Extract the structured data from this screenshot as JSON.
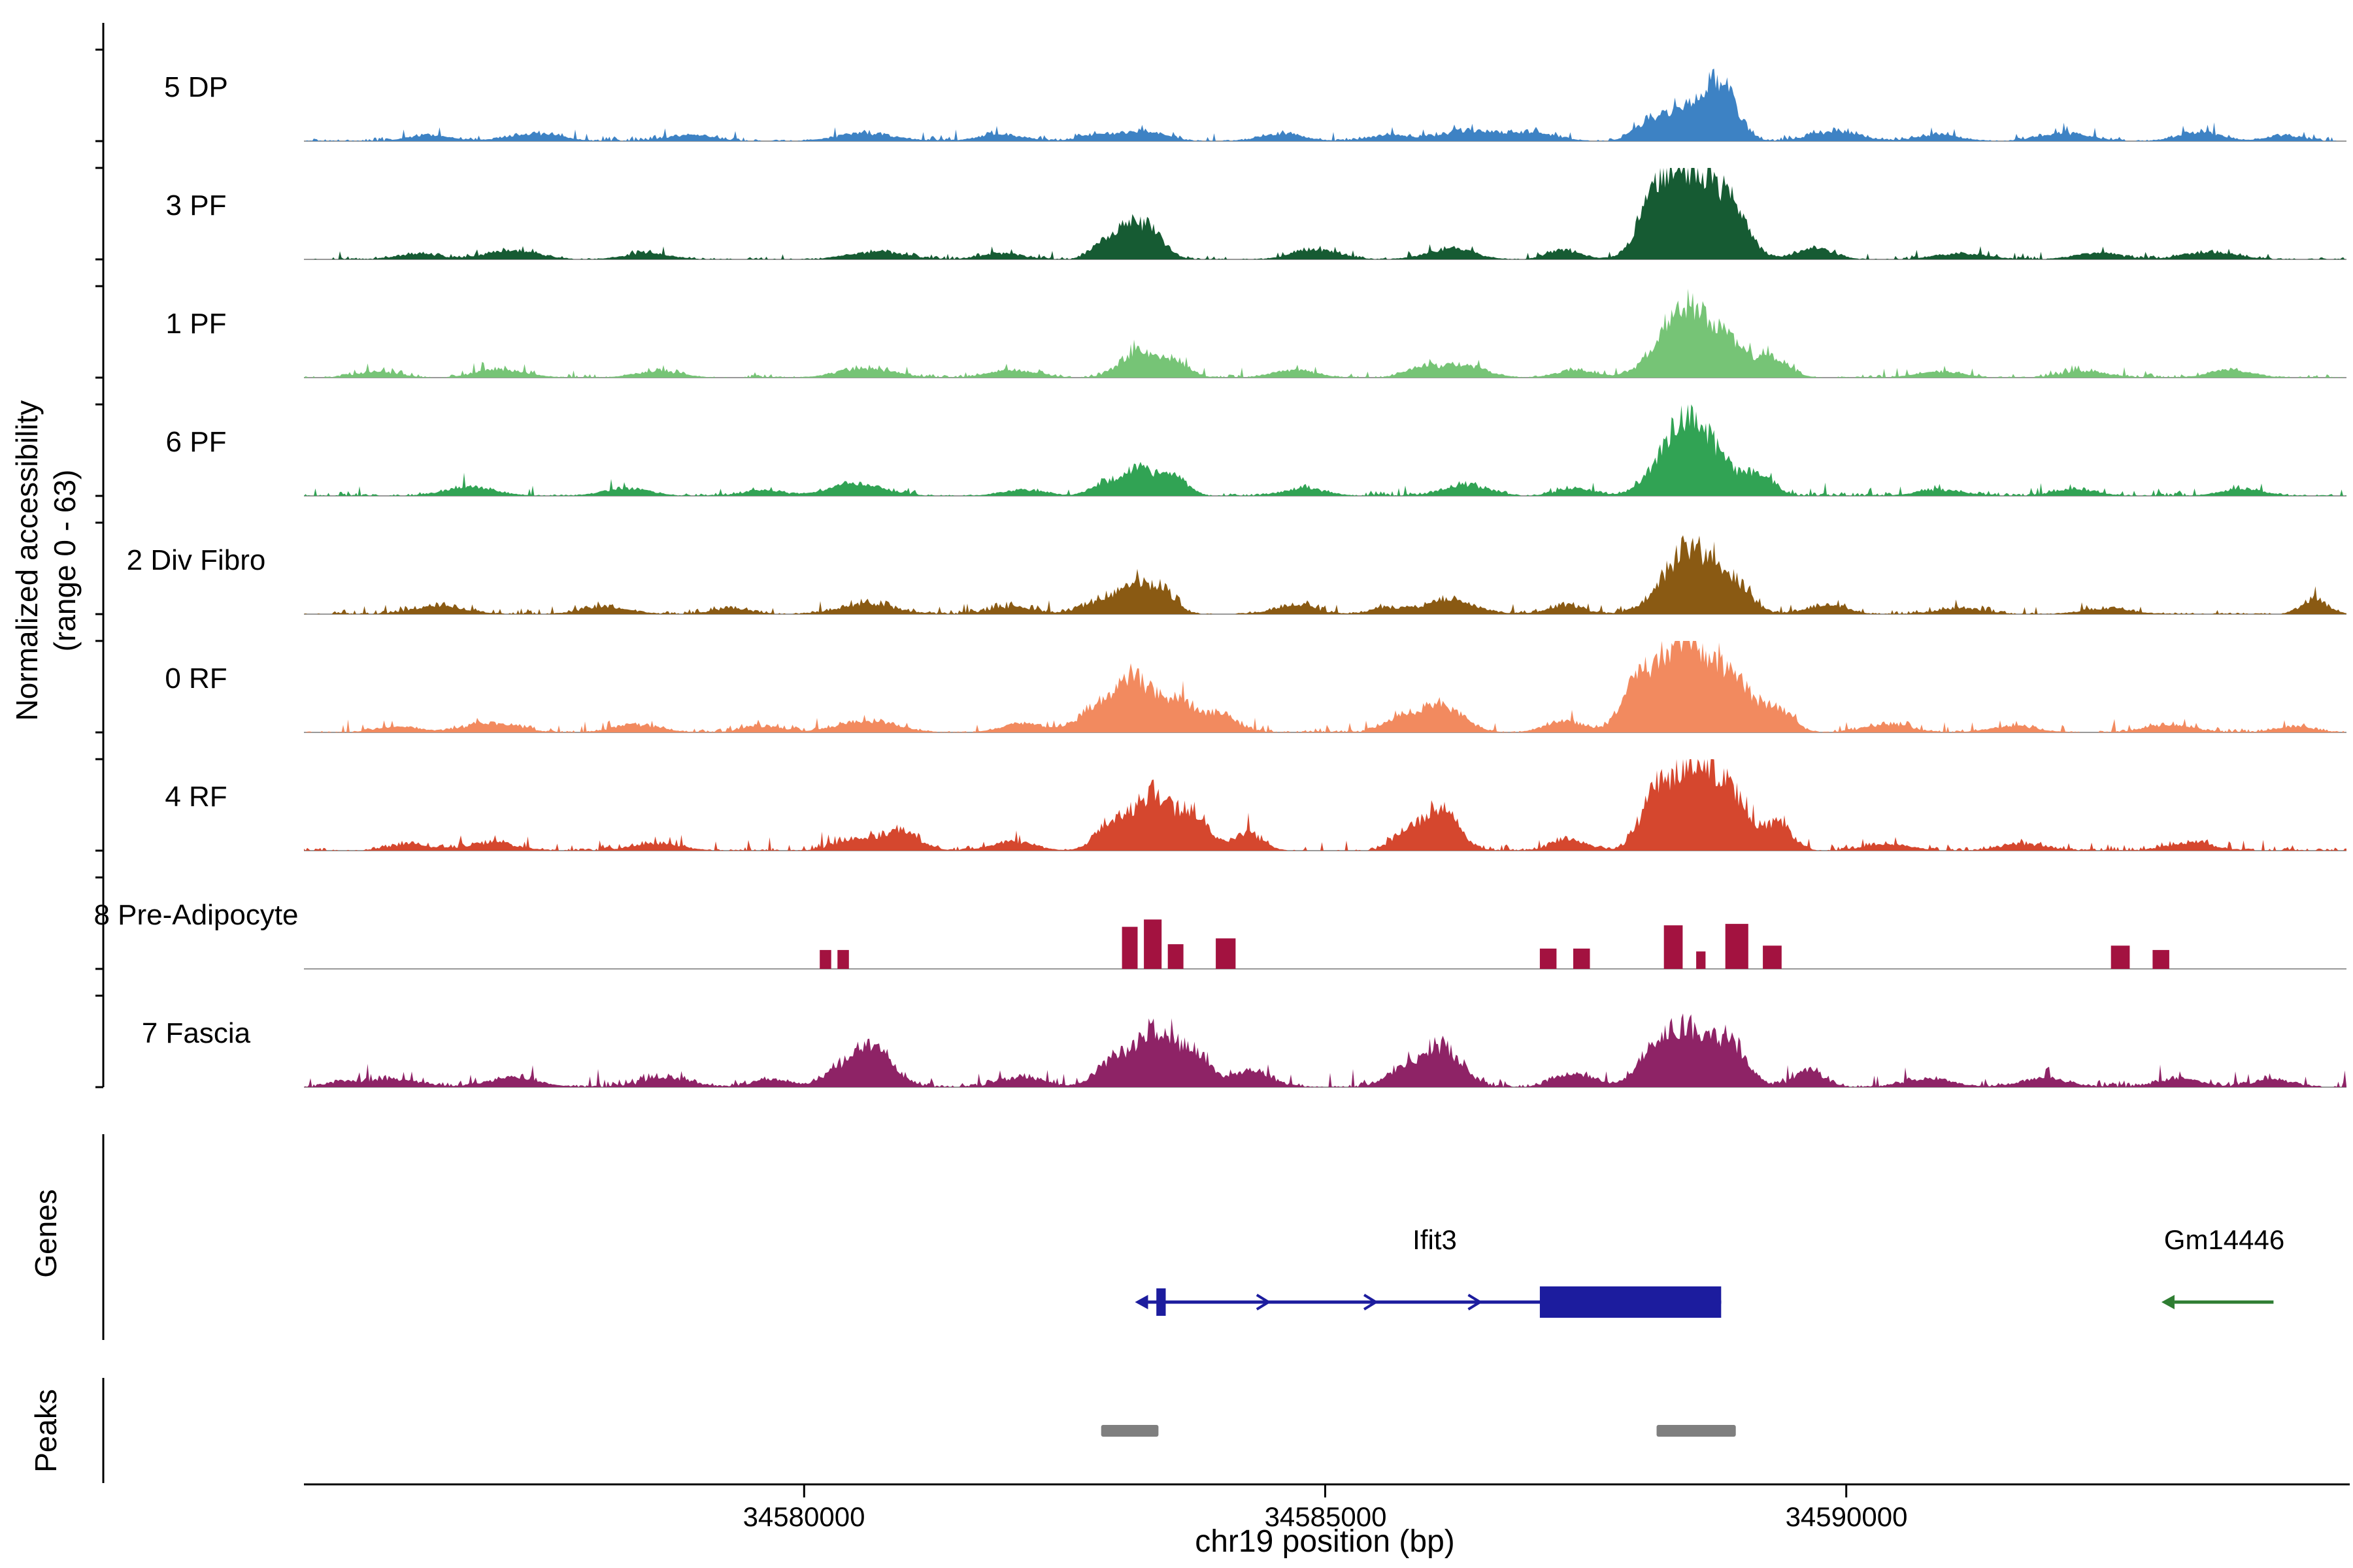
{
  "figure": {
    "y_axis_label_line1": "Normalized accessibility",
    "y_axis_label_line2": "(range 0 - 63)",
    "genes_section_label": "Genes",
    "peaks_section_label": "Peaks",
    "x_axis": {
      "title": "chr19 position (bp)",
      "ticks": [
        {
          "pos": 34580000,
          "label": "34580000"
        },
        {
          "pos": 34585000,
          "label": "34585000"
        },
        {
          "pos": 34590000,
          "label": "34590000"
        }
      ]
    }
  },
  "chart_data": {
    "type": "area",
    "title": "",
    "xlabel": "chr19 position (bp)",
    "ylabel": "Normalized accessibility (range 0 - 63)",
    "x_range_bp": [
      34575200,
      34594800
    ],
    "value_range": [
      0,
      63
    ],
    "tracks": [
      {
        "label": "5 DP",
        "color": "#3d82c4",
        "noise": 2.2,
        "peaks": [
          [
            34588800,
            150,
            34
          ],
          [
            34588450,
            230,
            20
          ],
          [
            34588100,
            140,
            9
          ],
          [
            34586400,
            280,
            7
          ],
          [
            34587000,
            220,
            5
          ],
          [
            34583250,
            200,
            7
          ],
          [
            34582800,
            160,
            4
          ],
          [
            34580600,
            280,
            5
          ],
          [
            34577400,
            250,
            5
          ],
          [
            34576400,
            200,
            4
          ],
          [
            34578900,
            220,
            4
          ],
          [
            34581900,
            220,
            4
          ],
          [
            34584600,
            200,
            5
          ],
          [
            34585600,
            180,
            4
          ],
          [
            34589900,
            240,
            6
          ],
          [
            34590900,
            200,
            4
          ],
          [
            34592100,
            240,
            5
          ],
          [
            34593400,
            200,
            6
          ],
          [
            34594200,
            160,
            4
          ]
        ]
      },
      {
        "label": "3 PF",
        "color": "#165b33",
        "noise": 1.6,
        "peaks": [
          [
            34588500,
            260,
            60
          ],
          [
            34588150,
            150,
            25
          ],
          [
            34588900,
            170,
            22
          ],
          [
            34583100,
            140,
            21
          ],
          [
            34583350,
            130,
            15
          ],
          [
            34582850,
            120,
            8
          ],
          [
            34586200,
            220,
            7
          ],
          [
            34585000,
            200,
            4
          ],
          [
            34580700,
            250,
            5
          ],
          [
            34577200,
            240,
            6
          ],
          [
            34576300,
            200,
            4
          ],
          [
            34578500,
            220,
            4
          ],
          [
            34581900,
            200,
            4
          ],
          [
            34584800,
            180,
            4
          ],
          [
            34587300,
            160,
            6
          ],
          [
            34589700,
            180,
            7
          ],
          [
            34591100,
            240,
            4
          ],
          [
            34592400,
            220,
            4
          ],
          [
            34593500,
            240,
            5
          ]
        ]
      },
      {
        "label": "1 PF",
        "color": "#76c476",
        "noise": 2.0,
        "peaks": [
          [
            34588450,
            240,
            50
          ],
          [
            34588900,
            160,
            18
          ],
          [
            34589300,
            150,
            13
          ],
          [
            34583200,
            170,
            17
          ],
          [
            34583550,
            140,
            11
          ],
          [
            34586300,
            230,
            8
          ],
          [
            34585900,
            150,
            5
          ],
          [
            34580600,
            260,
            6
          ],
          [
            34577100,
            240,
            5
          ],
          [
            34578600,
            220,
            4
          ],
          [
            34582000,
            220,
            5
          ],
          [
            34584700,
            200,
            5
          ],
          [
            34587400,
            180,
            5
          ],
          [
            34590900,
            220,
            4
          ],
          [
            34592300,
            220,
            4
          ],
          [
            34593700,
            200,
            5
          ],
          [
            34575900,
            200,
            4
          ]
        ]
      },
      {
        "label": "6 PF",
        "color": "#31a354",
        "noise": 2.0,
        "peaks": [
          [
            34588500,
            250,
            55
          ],
          [
            34589150,
            150,
            14
          ],
          [
            34583200,
            160,
            19
          ],
          [
            34583550,
            130,
            12
          ],
          [
            34582850,
            120,
            7
          ],
          [
            34586350,
            220,
            7
          ],
          [
            34580500,
            260,
            8
          ],
          [
            34576800,
            240,
            6
          ],
          [
            34578300,
            220,
            5
          ],
          [
            34579600,
            180,
            4
          ],
          [
            34582100,
            200,
            4
          ],
          [
            34584800,
            200,
            5
          ],
          [
            34587400,
            170,
            5
          ],
          [
            34590900,
            220,
            4
          ],
          [
            34592200,
            200,
            4
          ],
          [
            34593800,
            200,
            5
          ]
        ]
      },
      {
        "label": "2 Div Fibro",
        "color": "#8a5a13",
        "noise": 2.0,
        "peaks": [
          [
            34588500,
            250,
            44
          ],
          [
            34588950,
            150,
            15
          ],
          [
            34583150,
            160,
            22
          ],
          [
            34583450,
            130,
            13
          ],
          [
            34582800,
            130,
            7
          ],
          [
            34586200,
            240,
            10
          ],
          [
            34580600,
            260,
            7
          ],
          [
            34576500,
            240,
            6
          ],
          [
            34578100,
            220,
            5
          ],
          [
            34579300,
            180,
            4
          ],
          [
            34582000,
            220,
            5
          ],
          [
            34584700,
            200,
            6
          ],
          [
            34585600,
            160,
            4
          ],
          [
            34587300,
            170,
            6
          ],
          [
            34589800,
            190,
            6
          ],
          [
            34591100,
            220,
            4
          ],
          [
            34592500,
            220,
            4
          ],
          [
            34594500,
            130,
            9
          ]
        ]
      },
      {
        "label": "0 RF",
        "color": "#f28a5f",
        "noise": 2.4,
        "peaks": [
          [
            34588450,
            260,
            62
          ],
          [
            34588000,
            160,
            25
          ],
          [
            34588950,
            180,
            28
          ],
          [
            34589350,
            140,
            15
          ],
          [
            34583150,
            200,
            36
          ],
          [
            34583600,
            160,
            20
          ],
          [
            34584000,
            150,
            12
          ],
          [
            34582750,
            150,
            12
          ],
          [
            34586100,
            210,
            19
          ],
          [
            34585700,
            140,
            8
          ],
          [
            34580600,
            270,
            8
          ],
          [
            34577000,
            240,
            6
          ],
          [
            34578400,
            220,
            5
          ],
          [
            34579600,
            180,
            4
          ],
          [
            34582100,
            200,
            6
          ],
          [
            34587300,
            180,
            8
          ],
          [
            34590400,
            220,
            5
          ],
          [
            34591600,
            220,
            4
          ],
          [
            34593100,
            220,
            5
          ],
          [
            34594300,
            180,
            4
          ],
          [
            34576100,
            200,
            4
          ]
        ]
      },
      {
        "label": "4 RF",
        "color": "#d5472e",
        "noise": 2.4,
        "peaks": [
          [
            34588550,
            230,
            62
          ],
          [
            34588150,
            140,
            28
          ],
          [
            34588950,
            150,
            24
          ],
          [
            34589350,
            130,
            18
          ],
          [
            34583350,
            180,
            38
          ],
          [
            34583750,
            140,
            24
          ],
          [
            34582950,
            150,
            18
          ],
          [
            34584250,
            140,
            12
          ],
          [
            34586100,
            170,
            30
          ],
          [
            34585750,
            120,
            10
          ],
          [
            34580900,
            190,
            13
          ],
          [
            34580450,
            170,
            7
          ],
          [
            34577000,
            240,
            5
          ],
          [
            34578600,
            220,
            5
          ],
          [
            34582000,
            200,
            6
          ],
          [
            34587350,
            170,
            7
          ],
          [
            34590400,
            220,
            4
          ],
          [
            34591700,
            220,
            4
          ],
          [
            34593300,
            220,
            5
          ],
          [
            34576200,
            200,
            4
          ]
        ]
      },
      {
        "label": "8 Pre-Adipocyte",
        "color": "#a31240",
        "style": "blocks",
        "noise": 0,
        "peaks": [],
        "blocks": [
          [
            34580150,
            34580260,
            13
          ],
          [
            34580320,
            34580430,
            13
          ],
          [
            34583050,
            34583200,
            29
          ],
          [
            34583260,
            34583430,
            34
          ],
          [
            34583490,
            34583640,
            17
          ],
          [
            34583950,
            34584140,
            21
          ],
          [
            34587060,
            34587220,
            14
          ],
          [
            34587380,
            34587540,
            14
          ],
          [
            34588250,
            34588430,
            30
          ],
          [
            34588560,
            34588650,
            12
          ],
          [
            34588840,
            34589060,
            31
          ],
          [
            34589200,
            34589380,
            16
          ],
          [
            34592540,
            34592720,
            16
          ],
          [
            34592940,
            34593100,
            13
          ]
        ]
      },
      {
        "label": "7 Fascia",
        "color": "#8e2366",
        "noise": 3.0,
        "peaks": [
          [
            34588450,
            230,
            40
          ],
          [
            34588900,
            160,
            26
          ],
          [
            34588100,
            140,
            14
          ],
          [
            34583350,
            190,
            36
          ],
          [
            34583750,
            150,
            22
          ],
          [
            34582950,
            160,
            16
          ],
          [
            34586100,
            190,
            28
          ],
          [
            34585700,
            140,
            9
          ],
          [
            34580650,
            190,
            25
          ],
          [
            34580300,
            150,
            8
          ],
          [
            34584300,
            180,
            11
          ],
          [
            34577200,
            250,
            6
          ],
          [
            34578700,
            220,
            6
          ],
          [
            34579700,
            180,
            5
          ],
          [
            34582100,
            200,
            7
          ],
          [
            34587400,
            190,
            9
          ],
          [
            34589650,
            140,
            11
          ],
          [
            34590800,
            220,
            6
          ],
          [
            34591900,
            220,
            6
          ],
          [
            34593200,
            200,
            6
          ],
          [
            34594100,
            180,
            5
          ],
          [
            34576100,
            220,
            5
          ],
          [
            34575600,
            150,
            4
          ]
        ]
      }
    ],
    "genes": [
      {
        "name": "Ifit3",
        "color": "#1c1c9e",
        "strand": "+",
        "start": 34583300,
        "end": 34588800,
        "exons": [
          [
            34583380,
            34583470
          ],
          [
            34587060,
            34588800
          ]
        ],
        "chevrons": [
          34584400,
          34585430,
          34586430
        ]
      },
      {
        "name": "Gm14446",
        "color": "#2e7d32",
        "strand": "-",
        "start": 34593150,
        "end": 34594100,
        "exons": [],
        "chevrons": []
      }
    ],
    "peaks_track": [
      [
        34582850,
        34583400
      ],
      [
        34588180,
        34588940
      ]
    ],
    "peak_color": "#7f7f7f"
  }
}
